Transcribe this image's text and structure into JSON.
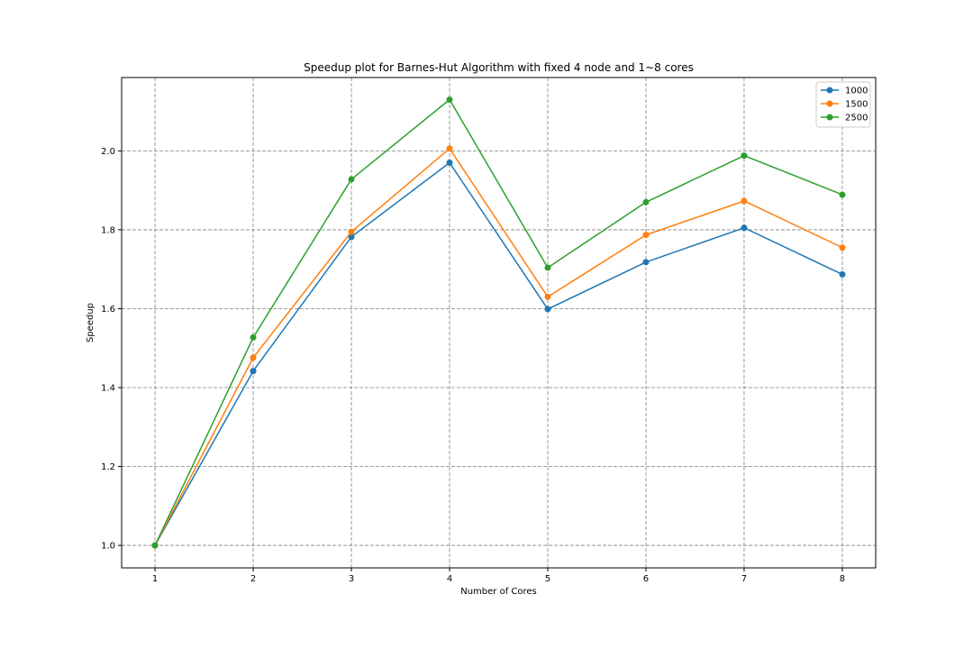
{
  "chart_data": {
    "type": "line",
    "title": "Speedup plot for Barnes-Hut Algorithm with fixed 4 node and 1~8 cores",
    "xlabel": "Number of Cores",
    "ylabel": "Speedup",
    "x": [
      1,
      2,
      3,
      4,
      5,
      6,
      7,
      8
    ],
    "xticks": [
      "1",
      "2",
      "3",
      "4",
      "5",
      "6",
      "7",
      "8"
    ],
    "yticks": [
      "1.0",
      "1.2",
      "1.4",
      "1.6",
      "1.8",
      "2.0"
    ],
    "xlim": [
      0.66,
      8.34
    ],
    "ylim": [
      0.943,
      2.186
    ],
    "grid": true,
    "grid_style": "dashed",
    "legend_position": "upper right",
    "marker": "circle",
    "series": [
      {
        "name": "1000",
        "color": "#1f77b4",
        "values": [
          1.0,
          1.442,
          1.782,
          1.97,
          1.599,
          1.718,
          1.805,
          1.687
        ]
      },
      {
        "name": "1500",
        "color": "#ff7f0e",
        "values": [
          1.0,
          1.476,
          1.795,
          2.006,
          1.63,
          1.787,
          1.873,
          1.755
        ]
      },
      {
        "name": "2500",
        "color": "#2ca02c",
        "values": [
          1.0,
          1.527,
          1.928,
          2.13,
          1.704,
          1.87,
          1.988,
          1.889
        ]
      }
    ]
  }
}
